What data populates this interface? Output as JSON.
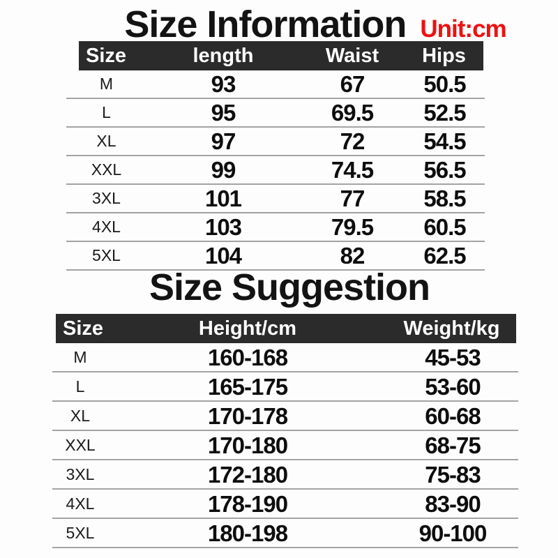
{
  "colors": {
    "accent_red": "#ee1111",
    "header_bg": "#2b2b2b",
    "header_text": "#ffffff",
    "body_text": "#0d0d0d",
    "divider_line": "#a3a3a3"
  },
  "size_info": {
    "title": "Size Information",
    "unit": "Unit:cm",
    "headers": [
      "Size",
      "length",
      "Waist",
      "Hips"
    ],
    "rows": [
      [
        "M",
        "93",
        "67",
        "50.5"
      ],
      [
        "L",
        "95",
        "69.5",
        "52.5"
      ],
      [
        "XL",
        "97",
        "72",
        "54.5"
      ],
      [
        "XXL",
        "99",
        "74.5",
        "56.5"
      ],
      [
        "3XL",
        "101",
        "77",
        "58.5"
      ],
      [
        "4XL",
        "103",
        "79.5",
        "60.5"
      ],
      [
        "5XL",
        "104",
        "82",
        "62.5"
      ]
    ]
  },
  "size_suggestion": {
    "title": "Size Suggestion",
    "headers": [
      "Size",
      "Height/cm",
      "Weight/kg"
    ],
    "rows": [
      [
        "M",
        "160-168",
        "45-53"
      ],
      [
        "L",
        "165-175",
        "53-60"
      ],
      [
        "XL",
        "170-178",
        "60-68"
      ],
      [
        "XXL",
        "170-180",
        "68-75"
      ],
      [
        "3XL",
        "172-180",
        "75-83"
      ],
      [
        "4XL",
        "178-190",
        "83-90"
      ],
      [
        "5XL",
        "180-198",
        "90-100"
      ]
    ]
  }
}
